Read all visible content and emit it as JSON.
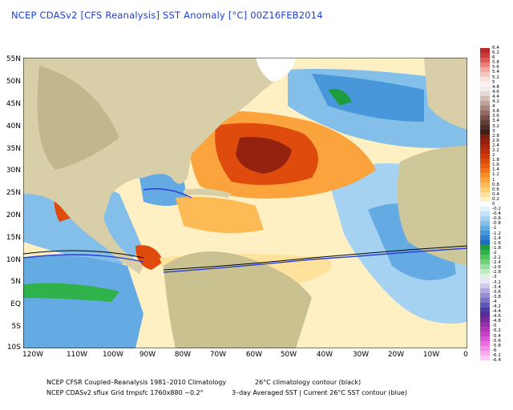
{
  "title": "NCEP CDASv2 [CFS Reanalysis] SST Anomaly [°C] 00Z16FEB2014",
  "latitude_labels": [
    "55N",
    "50N",
    "45N",
    "40N",
    "35N",
    "30N",
    "25N",
    "20N",
    "15N",
    "10N",
    "5N",
    "EQ",
    "5S",
    "10S"
  ],
  "longitude_labels": [
    "120W",
    "110W",
    "100W",
    "90W",
    "80W",
    "70W",
    "60W",
    "50W",
    "40W",
    "30W",
    "20W",
    "10W",
    "0"
  ],
  "colorbar": {
    "labels": [
      "6.4",
      "6.2",
      "6",
      "5.8",
      "5.6",
      "5.4",
      "5.2",
      "5",
      "4.8",
      "4.6",
      "4.4",
      "4.2",
      "4",
      "3.8",
      "3.6",
      "3.4",
      "3.2",
      "3",
      "2.8",
      "2.6",
      "2.4",
      "2.2",
      "2",
      "1.8",
      "1.6",
      "1.4",
      "1.2",
      "1",
      "0.8",
      "0.6",
      "0.4",
      "0.2",
      "0",
      "-0.2",
      "-0.4",
      "-0.6",
      "-0.8",
      "-1",
      "-1.2",
      "-1.4",
      "-1.6",
      "-1.8",
      "-2",
      "-2.2",
      "-2.4",
      "-2.6",
      "-2.8",
      "-3",
      "-3.2",
      "-3.4",
      "-3.6",
      "-3.8",
      "-4",
      "-4.2",
      "-4.4",
      "-4.6",
      "-4.8",
      "-5",
      "-5.2",
      "-5.4",
      "-5.6",
      "-5.8",
      "-6",
      "-6.2",
      "-6.4"
    ],
    "colors": [
      "#b8282b",
      "#cc3a3a",
      "#de5a55",
      "#ec7f7a",
      "#f4a6a0",
      "#f8c6c0",
      "#fbe0dc",
      "#fdf2f0",
      "#f3eceb",
      "#e4d6d3",
      "#d2bcb8",
      "#bfa19c",
      "#a98580",
      "#926a64",
      "#7a514b",
      "#643d37",
      "#4e2c27",
      "#3d1f1a",
      "#7a1f12",
      "#93230f",
      "#a9270c",
      "#bd2e0a",
      "#cf3a0a",
      "#df4b0d",
      "#ea5e14",
      "#f2741c",
      "#f78c2a",
      "#fba43e",
      "#fdbb56",
      "#fecf74",
      "#fee19a",
      "#fff0c4",
      "#ffffff",
      "#e2f1fb",
      "#c4e3f6",
      "#a4d2f0",
      "#84bfea",
      "#64abe3",
      "#4797da",
      "#2f82cf",
      "#1f6dc2",
      "#1c9c3d",
      "#2fb24a",
      "#4bc45c",
      "#6fd27a",
      "#97df9c",
      "#bfebc0",
      "#dff4df",
      "#e9e6f4",
      "#cfc9ea",
      "#b3abde",
      "#978ed2",
      "#7b72c6",
      "#5f57b8",
      "#4a3ea6",
      "#5a2b96",
      "#772c9c",
      "#9331a8",
      "#ad38b6",
      "#c642c4",
      "#da55d2",
      "#e96ee0",
      "#f48ae9",
      "#fba8f1",
      "#ffc6f7"
    ]
  },
  "legend": {
    "climatology_line": "NCEP CFSR Coupled–Reanalysis 1981–2010 Climatology",
    "clim_contour_label": "26°C climatology contour (black)",
    "grid_line": "NCEP CDASv2 sflux Grid tmpsfc 1760x880 ~0.2°",
    "current_label": "3–day Averaged SST | Current 26°C SST contour (blue)"
  },
  "colors": {
    "title": "#1f3fd0",
    "land": "#d8cfa8",
    "contour_black": "#000000",
    "contour_blue": "#2b3fd0"
  }
}
